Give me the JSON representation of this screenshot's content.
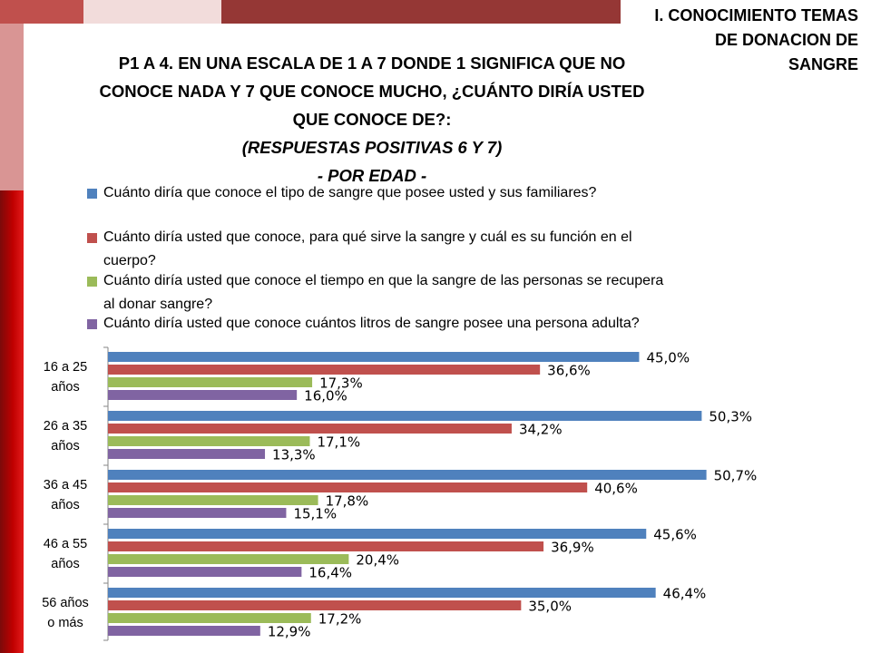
{
  "header": {
    "section_title_lines": [
      "I. CONOCIMIENTO TEMAS",
      "DE DONACION DE",
      "SANGRE"
    ]
  },
  "question": {
    "lines": [
      "P1 A 4. EN UNA ESCALA DE 1 A 7 DONDE 1 SIGNIFICA QUE NO",
      "CONOCE NADA Y 7 QUE CONOCE MUCHO, ¿CUÁNTO DIRÍA USTED",
      "QUE CONOCE DE?:"
    ],
    "subtitle": "(RESPUESTAS POSITIVAS 6 Y 7)",
    "subtitle2": "- POR EDAD -"
  },
  "colors": {
    "series": [
      "#4f81bd",
      "#c0504d",
      "#9bbb59",
      "#8064a2"
    ],
    "frame_red": "#c00000",
    "frame_pink": "#d99594"
  },
  "chart_data": {
    "type": "bar",
    "orientation": "horizontal",
    "categories": [
      "16 a 25 años",
      "26 a 35 años",
      "36 a 45 años",
      "46 a 55 años",
      "56 años o más"
    ],
    "category_lines": [
      [
        "16 a 25",
        "años"
      ],
      [
        "26 a 35",
        "años"
      ],
      [
        "36 a 45",
        "años"
      ],
      [
        "46 a 55",
        "años"
      ],
      [
        "56 años",
        "o más"
      ]
    ],
    "series": [
      {
        "name": "Cuánto diría que conoce el tipo de sangre que posee usted y sus familiares?",
        "values": [
          45.0,
          50.3,
          50.7,
          45.6,
          46.4
        ],
        "labels": [
          "45,0%",
          "50,3%",
          "50,7%",
          "45,6%",
          "46,4%"
        ]
      },
      {
        "name": "Cuánto diría usted que conoce, para qué sirve la sangre y cuál es su función en el cuerpo?",
        "values": [
          36.6,
          34.2,
          40.6,
          36.9,
          35.0
        ],
        "labels": [
          "36,6%",
          "34,2%",
          "40,6%",
          "36,9%",
          "35,0%"
        ]
      },
      {
        "name": "Cuánto diría usted que conoce el tiempo en que la sangre de las personas se recupera al donar sangre?",
        "values": [
          17.3,
          17.1,
          17.8,
          20.4,
          17.2
        ],
        "labels": [
          "17,3%",
          "17,1%",
          "17,8%",
          "20,4%",
          "17,2%"
        ]
      },
      {
        "name": "Cuánto diría usted que conoce cuántos litros de sangre posee una persona adulta?",
        "values": [
          16.0,
          13.3,
          15.1,
          16.4,
          12.9
        ],
        "labels": [
          "16,0%",
          "13,3%",
          "15,1%",
          "16,4%",
          "12,9%"
        ]
      }
    ],
    "legend_lines": [
      [
        "Cuánto diría que conoce el tipo de sangre que posee usted y sus familiares?"
      ],
      [
        "Cuánto diría usted que conoce, para qué sirve la sangre y cuál es su función en el",
        "cuerpo?"
      ],
      [
        "Cuánto diría usted que conoce el tiempo en que la sangre de las personas se recupera",
        "al donar sangre?"
      ],
      [
        "Cuánto diría usted que conoce cuántos litros de sangre posee una persona adulta?"
      ]
    ],
    "xlim": [
      0,
      100
    ],
    "grid": false,
    "legend_position": "top"
  }
}
